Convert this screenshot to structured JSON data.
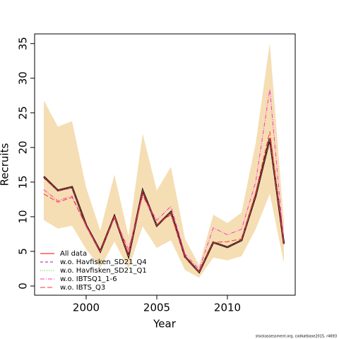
{
  "chart_data": {
    "type": "line",
    "x_label": "Year",
    "y_label": "Recruits",
    "footnote": "stockassessment.org, codkatbase2015, r4693",
    "x": [
      1997,
      1998,
      1999,
      2000,
      2001,
      2002,
      2003,
      2004,
      2005,
      2006,
      2007,
      2008,
      2009,
      2010,
      2011,
      2012,
      2013,
      2014
    ],
    "values": [
      15.8,
      13.8,
      14.3,
      8.8,
      5.0,
      10.1,
      4.3,
      13.8,
      8.7,
      10.7,
      4.2,
      2.0,
      6.3,
      5.6,
      6.6,
      13.0,
      21.3,
      6.1
    ],
    "color": "#000000",
    "band_upper": [
      26.8,
      23.0,
      23.8,
      14.2,
      8.0,
      16.1,
      7.2,
      22.0,
      13.8,
      17.2,
      6.8,
      3.0,
      10.3,
      9.1,
      10.6,
      20.6,
      35.1,
      9.1
    ],
    "band_lower": [
      9.5,
      8.3,
      8.7,
      5.3,
      2.7,
      6.4,
      2.5,
      8.6,
      5.5,
      6.6,
      2.3,
      1.2,
      4.1,
      3.7,
      4.3,
      8.2,
      13.3,
      3.3
    ],
    "band_color": "#f5deb3",
    "series": [
      {
        "name": "All data",
        "color": "#ff0000",
        "dash": "solid",
        "values": [
          15.8,
          13.8,
          14.3,
          8.8,
          5.0,
          10.1,
          4.3,
          13.8,
          8.7,
          10.7,
          4.2,
          2.0,
          6.3,
          5.6,
          6.6,
          13.0,
          21.3,
          6.1
        ]
      },
      {
        "name": "w.o. Havfisken_SD21_Q4",
        "color": "#b0179a",
        "dash": "dashed",
        "values": [
          15.6,
          13.7,
          14.2,
          8.8,
          5.0,
          10.0,
          4.3,
          13.7,
          8.7,
          10.6,
          4.2,
          2.0,
          6.3,
          5.6,
          6.6,
          13.0,
          21.2,
          6.1
        ]
      },
      {
        "name": "w.o. Havfisken_SD21_Q1",
        "color": "#33cc33",
        "dash": "dotted",
        "values": [
          15.8,
          13.8,
          14.3,
          8.8,
          5.0,
          10.1,
          4.3,
          13.8,
          8.7,
          10.7,
          4.2,
          2.0,
          6.3,
          5.6,
          6.6,
          13.0,
          21.3,
          6.1
        ]
      },
      {
        "name": "w.o. IBTSQ1_1-6",
        "color": "#ff33cc",
        "dash": "dashdot",
        "values": [
          13.9,
          12.3,
          13.0,
          8.6,
          5.0,
          9.9,
          5.3,
          13.0,
          9.5,
          11.5,
          4.6,
          2.4,
          8.4,
          7.4,
          8.2,
          15.0,
          28.4,
          6.0
        ]
      },
      {
        "name": "w.o. IBTS_Q3",
        "color": "#ff3333",
        "dash": "longdash",
        "values": [
          13.3,
          12.1,
          12.8,
          8.7,
          5.0,
          10.0,
          4.7,
          13.2,
          8.9,
          10.3,
          4.1,
          2.1,
          6.3,
          6.4,
          6.8,
          13.5,
          22.3,
          6.0
        ]
      }
    ],
    "xlim": [
      1996.35,
      2014.8
    ],
    "xticks": [
      2000,
      2005,
      2010
    ],
    "ylim": [
      -1.33,
      36.4
    ],
    "yticks": [
      0,
      5,
      10,
      15,
      20,
      25,
      30,
      35
    ],
    "legend": "bottom-left"
  }
}
